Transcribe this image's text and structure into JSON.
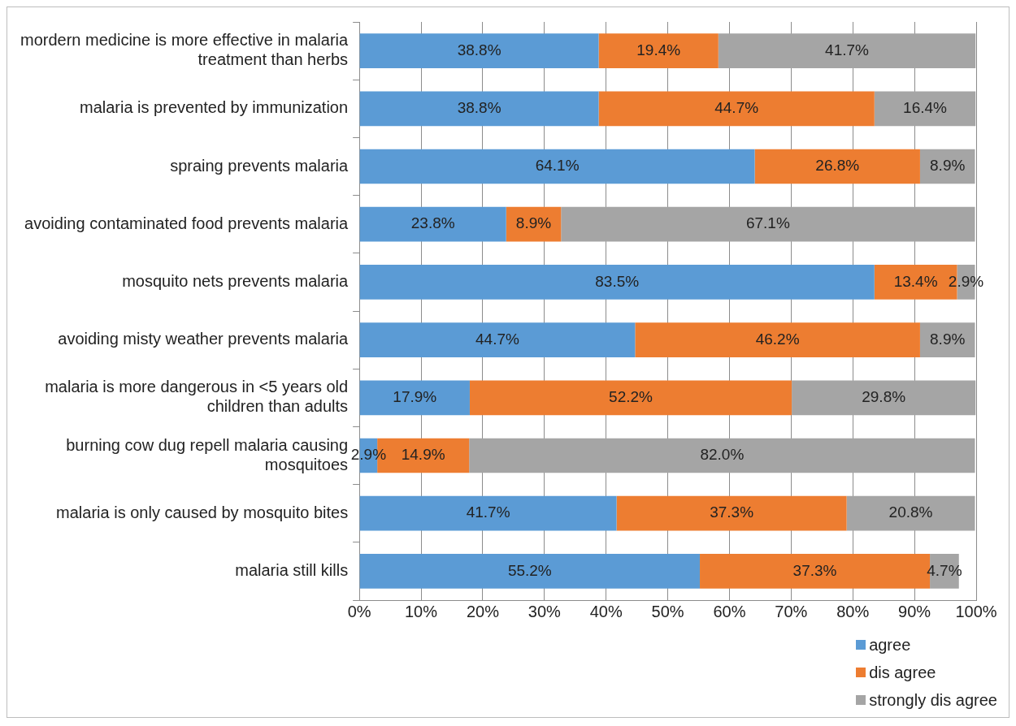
{
  "chart_data": {
    "type": "bar",
    "orientation": "horizontal",
    "stacked": true,
    "categories": [
      "mordern medicine is more effective in malaria treatment than herbs",
      "malaria is prevented by immunization",
      "spraing prevents malaria",
      "avoiding contaminated food prevents malaria",
      "mosquito nets prevents malaria",
      "avoiding misty weather prevents malaria",
      "malaria is more dangerous in <5 years old children than adults",
      "burning cow dug repell malaria causing mosquitoes",
      "malaria is only caused by mosquito bites",
      "malaria still kills"
    ],
    "series": [
      {
        "name": "agree",
        "color": "#5b9bd5",
        "values": [
          38.8,
          38.8,
          64.1,
          23.8,
          83.5,
          44.7,
          17.9,
          2.9,
          41.7,
          55.2
        ],
        "value_labels": [
          "38.8%",
          "38.8%",
          "64.1%",
          "23.8%",
          "83.5%",
          "44.7%",
          "17.9%",
          "2.9%",
          "41.7%",
          "55.2%"
        ]
      },
      {
        "name": "dis agree",
        "color": "#ed7d31",
        "values": [
          19.4,
          44.7,
          26.8,
          8.9,
          13.4,
          46.2,
          52.2,
          14.9,
          37.3,
          37.3
        ],
        "value_labels": [
          "19.4%",
          "44.7%",
          "26.8%",
          "8.9%",
          "13.4%",
          "46.2%",
          "52.2%",
          "14.9%",
          "37.3%",
          "37.3%"
        ]
      },
      {
        "name": "strongly dis agree",
        "color": "#a5a5a5",
        "values": [
          41.7,
          16.4,
          8.9,
          67.1,
          2.9,
          8.9,
          29.8,
          82.0,
          20.8,
          4.7
        ],
        "value_labels": [
          "41.7%",
          "16.4%",
          "8.9%",
          "67.1%",
          "2.9%",
          "8.9%",
          "29.8%",
          "82.0%",
          "20.8%",
          "4.7%"
        ]
      }
    ],
    "xlim": [
      0,
      100
    ],
    "xticks": [
      {
        "value": 0,
        "label": "0%"
      },
      {
        "value": 10,
        "label": "10%"
      },
      {
        "value": 20,
        "label": "20%"
      },
      {
        "value": 30,
        "label": "30%"
      },
      {
        "value": 40,
        "label": "40%"
      },
      {
        "value": 50,
        "label": "50%"
      },
      {
        "value": 60,
        "label": "60%"
      },
      {
        "value": 70,
        "label": "70%"
      },
      {
        "value": 80,
        "label": "80%"
      },
      {
        "value": 90,
        "label": "90%"
      },
      {
        "value": 100,
        "label": "100%"
      }
    ],
    "grid": "x",
    "legend": "bottom right"
  }
}
